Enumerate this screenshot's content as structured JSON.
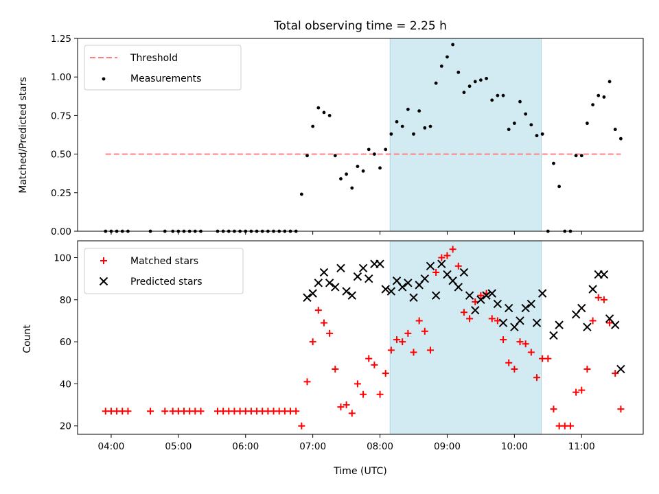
{
  "chart_data": [
    {
      "type": "scatter",
      "title": "Total observing time = 2.25 h",
      "xlabel": "",
      "ylabel": "Matched/Predicted stars",
      "ylim": [
        0,
        1.25
      ],
      "yticks": [
        "0.00",
        "0.25",
        "0.50",
        "0.75",
        "1.00",
        "1.25"
      ],
      "grid": false,
      "legend_position": "top-left",
      "shaded_interval": {
        "start": "08:09",
        "end": "10:24",
        "color": "#add8e6"
      },
      "threshold": {
        "name": "Threshold",
        "value": 0.5,
        "x_start": "03:55",
        "x_end": "11:35",
        "color": "#ff7f7f"
      },
      "series": [
        {
          "name": "Measurements",
          "color": "#000000",
          "x": [
            "03:55",
            "04:00",
            "04:05",
            "04:10",
            "04:15",
            "04:35",
            "04:48",
            "04:55",
            "05:00",
            "05:05",
            "05:10",
            "05:15",
            "05:20",
            "05:35",
            "05:40",
            "05:45",
            "05:50",
            "05:55",
            "06:00",
            "06:05",
            "06:10",
            "06:15",
            "06:20",
            "06:25",
            "06:30",
            "06:35",
            "06:40",
            "06:45",
            "06:50",
            "06:55",
            "07:00",
            "07:05",
            "07:10",
            "07:15",
            "07:20",
            "07:25",
            "07:30",
            "07:35",
            "07:40",
            "07:45",
            "07:50",
            "07:55",
            "08:00",
            "08:05",
            "08:10",
            "08:15",
            "08:20",
            "08:25",
            "08:30",
            "08:35",
            "08:40",
            "08:45",
            "08:50",
            "08:55",
            "09:00",
            "09:05",
            "09:10",
            "09:15",
            "09:20",
            "09:25",
            "09:30",
            "09:35",
            "09:40",
            "09:45",
            "09:50",
            "09:55",
            "10:00",
            "10:05",
            "10:10",
            "10:15",
            "10:20",
            "10:25",
            "10:30",
            "10:35",
            "10:40",
            "10:45",
            "10:50",
            "10:55",
            "11:00",
            "11:05",
            "11:10",
            "11:15",
            "11:20",
            "11:25",
            "11:30",
            "11:35"
          ],
          "y": [
            0,
            0,
            0,
            0,
            0,
            0,
            0,
            0,
            0,
            0,
            0,
            0,
            0,
            0,
            0,
            0,
            0,
            0,
            0,
            0,
            0,
            0,
            0,
            0,
            0,
            0,
            0,
            0,
            0.24,
            0.49,
            0.68,
            0.8,
            0.77,
            0.75,
            0.49,
            0.34,
            0.37,
            0.28,
            0.42,
            0.39,
            0.53,
            0.5,
            0.41,
            0.53,
            0.63,
            0.71,
            0.68,
            0.79,
            0.63,
            0.78,
            0.67,
            0.68,
            0.96,
            1.07,
            1.13,
            1.21,
            1.03,
            0.9,
            0.94,
            0.97,
            0.98,
            0.99,
            0.85,
            0.88,
            0.88,
            0.66,
            0.7,
            0.84,
            0.76,
            0.69,
            0.62,
            0.63,
            0,
            0.44,
            0.29,
            0,
            0,
            0.49,
            0.49,
            0.7,
            0.82,
            0.88,
            0.87,
            0.97,
            0.66,
            0.6
          ]
        }
      ]
    },
    {
      "type": "scatter",
      "xlabel": "Time (UTC)",
      "ylabel": "Count",
      "ylim": [
        16,
        108
      ],
      "yticks": [
        "20",
        "40",
        "60",
        "80",
        "100"
      ],
      "xticks": [
        "04:00",
        "05:00",
        "06:00",
        "07:00",
        "08:00",
        "09:00",
        "10:00",
        "11:00"
      ],
      "xlim": [
        "03:30",
        "11:55"
      ],
      "grid": false,
      "legend_position": "top-left",
      "shaded_interval": {
        "start": "08:09",
        "end": "10:24",
        "color": "#add8e6"
      },
      "series": [
        {
          "name": "Matched stars",
          "marker": "+",
          "color": "#ff0000",
          "x": [
            "03:55",
            "04:00",
            "04:05",
            "04:10",
            "04:15",
            "04:35",
            "04:48",
            "04:55",
            "05:00",
            "05:05",
            "05:10",
            "05:15",
            "05:20",
            "05:35",
            "05:40",
            "05:45",
            "05:50",
            "05:55",
            "06:00",
            "06:05",
            "06:10",
            "06:15",
            "06:20",
            "06:25",
            "06:30",
            "06:35",
            "06:40",
            "06:45",
            "06:50",
            "06:55",
            "07:00",
            "07:05",
            "07:10",
            "07:15",
            "07:20",
            "07:25",
            "07:30",
            "07:35",
            "07:40",
            "07:45",
            "07:50",
            "07:55",
            "08:00",
            "08:05",
            "08:10",
            "08:15",
            "08:20",
            "08:25",
            "08:30",
            "08:35",
            "08:40",
            "08:45",
            "08:50",
            "08:55",
            "09:00",
            "09:05",
            "09:10",
            "09:15",
            "09:20",
            "09:25",
            "09:30",
            "09:35",
            "09:40",
            "09:45",
            "09:50",
            "09:55",
            "10:00",
            "10:05",
            "10:10",
            "10:15",
            "10:20",
            "10:25",
            "10:30",
            "10:35",
            "10:40",
            "10:45",
            "10:50",
            "10:55",
            "11:00",
            "11:05",
            "11:10",
            "11:15",
            "11:20",
            "11:25",
            "11:30",
            "11:35"
          ],
          "y": [
            27,
            27,
            27,
            27,
            27,
            27,
            27,
            27,
            27,
            27,
            27,
            27,
            27,
            27,
            27,
            27,
            27,
            27,
            27,
            27,
            27,
            27,
            27,
            27,
            27,
            27,
            27,
            27,
            20,
            41,
            60,
            75,
            69,
            64,
            47,
            29,
            30,
            26,
            40,
            35,
            52,
            49,
            35,
            45,
            56,
            61,
            60,
            64,
            55,
            70,
            65,
            56,
            93,
            100,
            101,
            104,
            96,
            74,
            71,
            79,
            82,
            83,
            71,
            70,
            61,
            50,
            47,
            60,
            59,
            55,
            43,
            52,
            52,
            28,
            20,
            20,
            20,
            36,
            37,
            47,
            70,
            81,
            80,
            69,
            45,
            28
          ]
        },
        {
          "name": "Predicted stars",
          "marker": "x",
          "color": "#000000",
          "x": [
            "06:55",
            "07:00",
            "07:05",
            "07:10",
            "07:15",
            "07:20",
            "07:25",
            "07:30",
            "07:35",
            "07:40",
            "07:45",
            "07:50",
            "07:55",
            "08:00",
            "08:05",
            "08:10",
            "08:15",
            "08:20",
            "08:25",
            "08:30",
            "08:35",
            "08:40",
            "08:45",
            "08:50",
            "08:55",
            "09:00",
            "09:05",
            "09:10",
            "09:15",
            "09:20",
            "09:25",
            "09:30",
            "09:35",
            "09:40",
            "09:45",
            "09:50",
            "09:55",
            "10:00",
            "10:05",
            "10:10",
            "10:15",
            "10:20",
            "10:25",
            "10:35",
            "10:40",
            "10:55",
            "11:00",
            "11:05",
            "11:10",
            "11:15",
            "11:20",
            "11:25",
            "11:30",
            "11:35"
          ],
          "y": [
            81,
            83,
            88,
            93,
            88,
            86,
            95,
            84,
            82,
            91,
            95,
            90,
            97,
            97,
            85,
            84,
            89,
            86,
            88,
            81,
            87,
            90,
            96,
            82,
            97,
            92,
            89,
            86,
            93,
            82,
            75,
            80,
            82,
            83,
            78,
            69,
            76,
            67,
            70,
            76,
            78,
            69,
            83,
            63,
            68,
            73,
            76,
            67,
            85,
            92,
            92,
            71,
            68,
            47
          ]
        }
      ]
    }
  ]
}
